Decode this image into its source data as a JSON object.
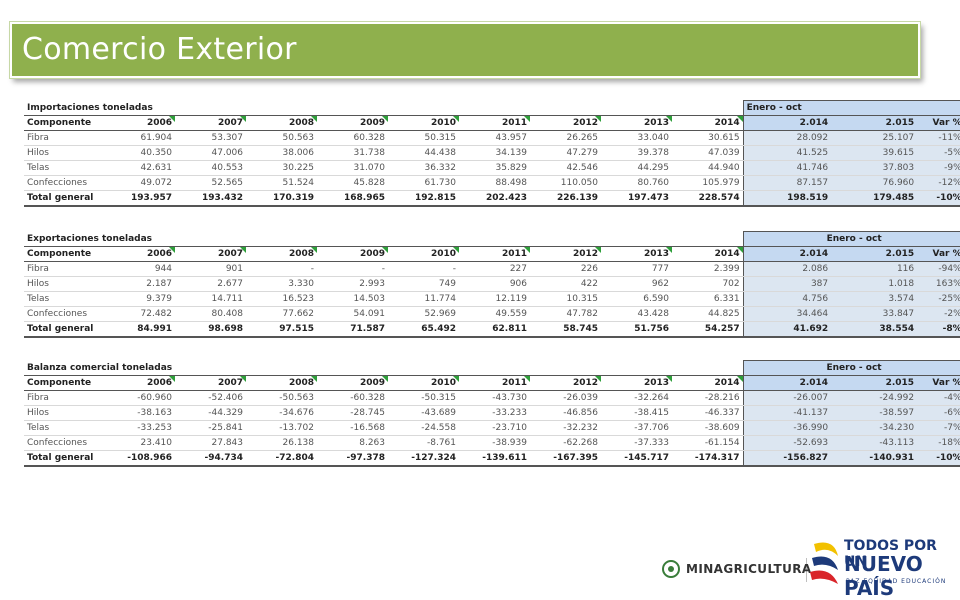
{
  "slide": {
    "title": "Comercio Exterior"
  },
  "tables": [
    {
      "caption": "Importaciones toneladas",
      "period_header": "Enero - oct",
      "headers": [
        "Componente",
        "2006",
        "2007",
        "2008",
        "2009",
        "2010",
        "2011",
        "2012",
        "2013",
        "2014",
        "2.014",
        "2.015",
        "Var %"
      ],
      "rows": [
        {
          "label": "Fibra",
          "values": [
            "61.904",
            "53.307",
            "50.563",
            "60.328",
            "50.315",
            "43.957",
            "26.265",
            "33.040",
            "30.615",
            "28.092",
            "25.107",
            "-11%"
          ]
        },
        {
          "label": "Hilos",
          "values": [
            "40.350",
            "47.006",
            "38.006",
            "31.738",
            "44.438",
            "34.139",
            "47.279",
            "39.378",
            "47.039",
            "41.525",
            "39.615",
            "-5%"
          ]
        },
        {
          "label": "Telas",
          "values": [
            "42.631",
            "40.553",
            "30.225",
            "31.070",
            "36.332",
            "35.829",
            "42.546",
            "44.295",
            "44.940",
            "41.746",
            "37.803",
            "-9%"
          ]
        },
        {
          "label": "Confecciones",
          "values": [
            "49.072",
            "52.565",
            "51.524",
            "45.828",
            "61.730",
            "88.498",
            "110.050",
            "80.760",
            "105.979",
            "87.157",
            "76.960",
            "-12%"
          ]
        }
      ],
      "total": {
        "label": "Total general",
        "values": [
          "193.957",
          "193.432",
          "170.319",
          "168.965",
          "192.815",
          "202.423",
          "226.139",
          "197.473",
          "228.574",
          "198.519",
          "179.485",
          "-10%"
        ]
      }
    },
    {
      "caption": "Exportaciones toneladas",
      "period_header": "Enero - oct",
      "headers": [
        "Componente",
        "2006",
        "2007",
        "2008",
        "2009",
        "2010",
        "2011",
        "2012",
        "2013",
        "2014",
        "2.014",
        "2.015",
        "Var %"
      ],
      "rows": [
        {
          "label": "Fibra",
          "values": [
            "944",
            "901",
            "-",
            "-",
            "-",
            "227",
            "226",
            "777",
            "2.399",
            "2.086",
            "116",
            "-94%"
          ]
        },
        {
          "label": "Hilos",
          "values": [
            "2.187",
            "2.677",
            "3.330",
            "2.993",
            "749",
            "906",
            "422",
            "962",
            "702",
            "387",
            "1.018",
            "163%"
          ]
        },
        {
          "label": "Telas",
          "values": [
            "9.379",
            "14.711",
            "16.523",
            "14.503",
            "11.774",
            "12.119",
            "10.315",
            "6.590",
            "6.331",
            "4.756",
            "3.574",
            "-25%"
          ]
        },
        {
          "label": "Confecciones",
          "values": [
            "72.482",
            "80.408",
            "77.662",
            "54.091",
            "52.969",
            "49.559",
            "47.782",
            "43.428",
            "44.825",
            "34.464",
            "33.847",
            "-2%"
          ]
        }
      ],
      "total": {
        "label": "Total general",
        "values": [
          "84.991",
          "98.698",
          "97.515",
          "71.587",
          "65.492",
          "62.811",
          "58.745",
          "51.756",
          "54.257",
          "41.692",
          "38.554",
          "-8%"
        ]
      }
    },
    {
      "caption": "Balanza comercial toneladas",
      "period_header": "Enero - oct",
      "headers": [
        "Componente",
        "2006",
        "2007",
        "2008",
        "2009",
        "2010",
        "2011",
        "2012",
        "2013",
        "2014",
        "2.014",
        "2.015",
        "Var %"
      ],
      "rows": [
        {
          "label": "Fibra",
          "values": [
            "-60.960",
            "-52.406",
            "-50.563",
            "-60.328",
            "-50.315",
            "-43.730",
            "-26.039",
            "-32.264",
            "-28.216",
            "-26.007",
            "-24.992",
            "-4%"
          ]
        },
        {
          "label": "Hilos",
          "values": [
            "-38.163",
            "-44.329",
            "-34.676",
            "-28.745",
            "-43.689",
            "-33.233",
            "-46.856",
            "-38.415",
            "-46.337",
            "-41.137",
            "-38.597",
            "-6%"
          ]
        },
        {
          "label": "Telas",
          "values": [
            "-33.253",
            "-25.841",
            "-13.702",
            "-16.568",
            "-24.558",
            "-23.710",
            "-32.232",
            "-37.706",
            "-38.609",
            "-36.990",
            "-34.230",
            "-7%"
          ]
        },
        {
          "label": "Confecciones",
          "values": [
            "23.410",
            "27.843",
            "26.138",
            "8.263",
            "-8.761",
            "-38.939",
            "-62.268",
            "-37.333",
            "-61.154",
            "-52.693",
            "-43.113",
            "-18%"
          ]
        }
      ],
      "total": {
        "label": "Total general",
        "values": [
          "-108.966",
          "-94.734",
          "-72.804",
          "-97.378",
          "-127.324",
          "-139.611",
          "-167.395",
          "-145.717",
          "-174.317",
          "-156.827",
          "-140.931",
          "-10%"
        ]
      }
    }
  ],
  "footer": {
    "ministry": "MINAGRICULTURA",
    "brand_line1": "TODOS POR UN",
    "brand_line2": "NUEVO PAÍS",
    "brand_tagline": "PAZ  EQUIDAD  EDUCACIÓN"
  }
}
